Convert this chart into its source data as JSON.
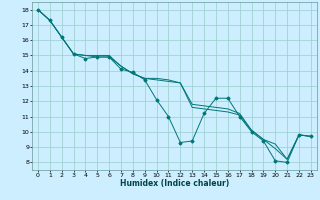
{
  "xlabel": "Humidex (Indice chaleur)",
  "bg_color": "#cceeff",
  "grid_color": "#99cccc",
  "line_color": "#007777",
  "xlim": [
    -0.5,
    23.5
  ],
  "ylim": [
    7.5,
    18.5
  ],
  "xticks": [
    0,
    1,
    2,
    3,
    4,
    5,
    6,
    7,
    8,
    9,
    10,
    11,
    12,
    13,
    14,
    15,
    16,
    17,
    18,
    19,
    20,
    21,
    22,
    23
  ],
  "yticks": [
    8,
    9,
    10,
    11,
    12,
    13,
    14,
    15,
    16,
    17,
    18
  ],
  "series": [
    [
      18.0,
      17.3,
      16.2,
      15.1,
      14.8,
      14.9,
      14.9,
      14.1,
      13.9,
      13.4,
      12.1,
      11.0,
      9.3,
      9.4,
      11.2,
      12.2,
      12.2,
      11.0,
      10.0,
      9.4,
      8.1,
      8.0,
      9.8,
      9.7
    ],
    [
      18.0,
      17.3,
      16.2,
      15.1,
      15.0,
      15.0,
      15.0,
      14.3,
      13.8,
      13.5,
      13.4,
      13.3,
      13.2,
      11.6,
      11.5,
      11.4,
      11.3,
      11.1,
      10.1,
      9.5,
      8.9,
      8.2,
      9.8,
      9.7
    ],
    [
      18.0,
      17.3,
      16.2,
      15.1,
      15.0,
      14.9,
      14.9,
      14.3,
      13.8,
      13.5,
      13.5,
      13.4,
      13.2,
      11.8,
      11.7,
      11.6,
      11.5,
      11.2,
      10.1,
      9.5,
      9.2,
      8.2,
      9.8,
      9.7
    ]
  ]
}
